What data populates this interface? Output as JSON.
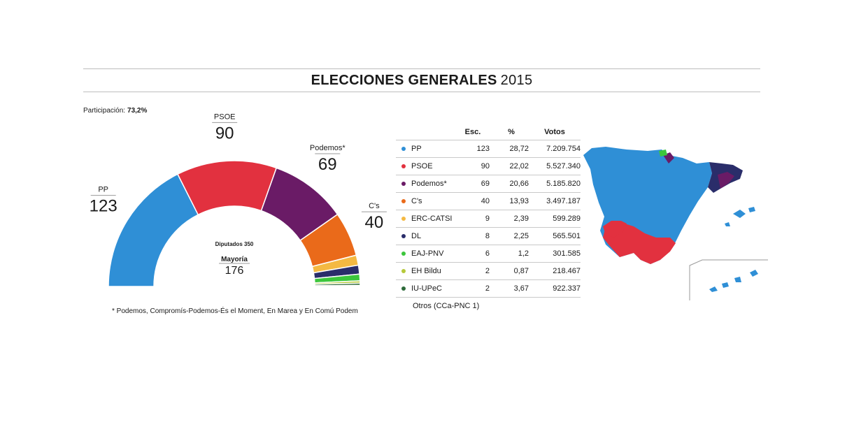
{
  "header": {
    "title_bold": "ELECCIONES GENERALES",
    "title_year": "2015"
  },
  "participation": {
    "label": "Participación:",
    "value": "73,2%"
  },
  "colors": {
    "PP": "#2f8fd6",
    "PSOE": "#e2313f",
    "Podemos": "#6a1b66",
    "Cs": "#ea6a1a",
    "ERC-CATSI": "#f4b942",
    "DL": "#2a2d6a",
    "EAJ-PNV": "#3cc63c",
    "EH Bildu": "#b6c93a",
    "IU-UPeC": "#2d6a3a"
  },
  "chart_data": {
    "type": "pie",
    "subtype": "semicircle parliament",
    "center_labels": {
      "diputados": "Diputados 350",
      "mayoria_label": "Mayoría",
      "mayoria_value": "176"
    },
    "series": [
      {
        "name": "PP",
        "label": "PP",
        "value": 123,
        "color": "#2f8fd6"
      },
      {
        "name": "PSOE",
        "label": "PSOE",
        "value": 90,
        "color": "#e2313f"
      },
      {
        "name": "Podemos*",
        "label": "Podemos*",
        "value": 69,
        "color": "#6a1b66"
      },
      {
        "name": "C's",
        "label": "C's",
        "value": 40,
        "color": "#ea6a1a"
      },
      {
        "name": "ERC-CATSI",
        "value": 9,
        "color": "#f4b942"
      },
      {
        "name": "DL",
        "value": 8,
        "color": "#2a2d6a"
      },
      {
        "name": "EAJ-PNV",
        "value": 6,
        "color": "#3cc63c"
      },
      {
        "name": "EH Bildu",
        "value": 2,
        "color": "#b6c93a"
      },
      {
        "name": "IU-UPeC",
        "value": 2,
        "color": "#2d6a3a"
      },
      {
        "name": "Otros",
        "value": 1,
        "color": "#8a8a8a"
      }
    ],
    "footnote": "* Podemos, Compromís-Podemos-És el Moment, En Marea y En Comú Podem"
  },
  "table": {
    "headers": [
      "Esc.",
      "%",
      "Votos"
    ],
    "rows": [
      {
        "party": "PP",
        "esc": "123",
        "pct": "28,72",
        "votes": "7.209.754",
        "color": "#2f8fd6"
      },
      {
        "party": "PSOE",
        "esc": "90",
        "pct": "22,02",
        "votes": "5.527.340",
        "color": "#e2313f"
      },
      {
        "party": "Podemos*",
        "esc": "69",
        "pct": "20,66",
        "votes": "5.185.820",
        "color": "#6a1b66"
      },
      {
        "party": "C's",
        "esc": "40",
        "pct": "13,93",
        "votes": "3.497.187",
        "color": "#ea6a1a"
      },
      {
        "party": "ERC-CATSI",
        "esc": "9",
        "pct": "2,39",
        "votes": "599.289",
        "color": "#f4b942"
      },
      {
        "party": "DL",
        "esc": "8",
        "pct": "2,25",
        "votes": "565.501",
        "color": "#2a2d6a"
      },
      {
        "party": "EAJ-PNV",
        "esc": "6",
        "pct": "1,2",
        "votes": "301.585",
        "color": "#3cc63c"
      },
      {
        "party": "EH Bildu",
        "esc": "2",
        "pct": "0,87",
        "votes": "218.467",
        "color": "#b6c93a"
      },
      {
        "party": "IU-UPeC",
        "esc": "2",
        "pct": "3,67",
        "votes": "922.337",
        "color": "#2d6a3a"
      }
    ],
    "otros": "Otros (CCa-PNC 1)"
  }
}
